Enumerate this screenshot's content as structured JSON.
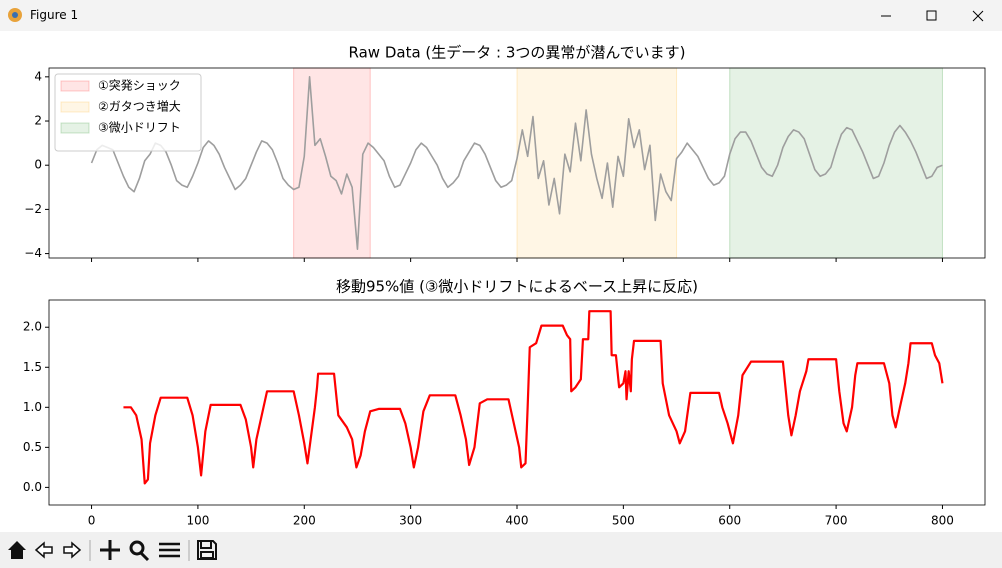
{
  "window": {
    "title": "Figure 1"
  },
  "chart_data": [
    {
      "type": "line",
      "title": "Raw Data (生データ : 3つの異常が潜んでいます)",
      "xlim": [
        -40,
        840
      ],
      "ylim": [
        -4.2,
        4.4
      ],
      "xticks": [
        0,
        100,
        200,
        300,
        400,
        500,
        600,
        700,
        800
      ],
      "show_xticklabels": false,
      "yticks": [
        {
          "value": -4,
          "label": "−4"
        },
        {
          "value": -2,
          "label": "−2"
        },
        0,
        2,
        4
      ],
      "spans": [
        {
          "name": "①突発ショック",
          "color": "red",
          "start": 190,
          "end": 262
        },
        {
          "name": "②ガタつき増大",
          "color": "orange",
          "start": 400,
          "end": 550
        },
        {
          "name": "③微小ドリフト",
          "color": "green",
          "start": 600,
          "end": 800
        }
      ],
      "span_alpha": 0.1,
      "legend": "upper left",
      "series": [
        {
          "color": "#9e9e9e",
          "x": [
            0,
            5,
            10,
            15,
            20,
            25,
            30,
            35,
            40,
            45,
            50,
            55,
            60,
            65,
            70,
            75,
            80,
            85,
            90,
            95,
            100,
            105,
            110,
            115,
            120,
            125,
            130,
            135,
            140,
            145,
            150,
            155,
            160,
            165,
            170,
            175,
            180,
            185,
            190,
            195,
            200,
            205,
            210,
            215,
            220,
            225,
            230,
            235,
            240,
            245,
            250,
            255,
            260,
            265,
            270,
            275,
            280,
            285,
            290,
            295,
            300,
            305,
            310,
            315,
            320,
            325,
            330,
            335,
            340,
            345,
            350,
            355,
            360,
            365,
            370,
            375,
            380,
            385,
            390,
            395,
            400,
            405,
            410,
            415,
            420,
            425,
            430,
            435,
            440,
            445,
            450,
            455,
            460,
            465,
            470,
            475,
            480,
            485,
            490,
            495,
            500,
            505,
            510,
            515,
            520,
            525,
            530,
            535,
            540,
            545,
            550,
            555,
            560,
            565,
            570,
            575,
            580,
            585,
            590,
            595,
            600,
            605,
            610,
            615,
            620,
            625,
            630,
            635,
            640,
            645,
            650,
            655,
            660,
            665,
            670,
            675,
            680,
            685,
            690,
            695,
            700,
            705,
            710,
            715,
            720,
            725,
            730,
            735,
            740,
            745,
            750,
            755,
            760,
            765,
            770,
            775,
            780,
            785,
            790,
            795,
            800
          ],
          "values": [
            0.1,
            0.7,
            0.9,
            0.8,
            0.7,
            0.1,
            -0.5,
            -1.0,
            -1.2,
            -0.6,
            0.2,
            0.5,
            1.0,
            0.9,
            0.6,
            0.0,
            -0.7,
            -0.9,
            -1.0,
            -0.5,
            0.1,
            0.8,
            1.1,
            0.9,
            0.5,
            -0.1,
            -0.6,
            -1.1,
            -0.9,
            -0.6,
            0.0,
            0.6,
            1.1,
            1.0,
            0.7,
            0.1,
            -0.6,
            -0.9,
            -1.1,
            -1.0,
            0.4,
            4.0,
            0.9,
            1.2,
            0.4,
            -0.5,
            -0.7,
            -1.3,
            -0.4,
            -1.0,
            -3.8,
            0.5,
            1.0,
            0.8,
            0.5,
            0.2,
            -0.5,
            -1.0,
            -0.9,
            -0.4,
            0.1,
            0.7,
            1.0,
            0.8,
            0.4,
            0.0,
            -0.6,
            -1.0,
            -0.8,
            -0.5,
            0.2,
            0.6,
            1.0,
            0.9,
            0.5,
            -0.1,
            -0.7,
            -1.0,
            -0.9,
            -0.7,
            0.3,
            1.6,
            0.4,
            2.2,
            -0.6,
            0.2,
            -1.8,
            -0.6,
            -2.2,
            0.5,
            -0.3,
            1.9,
            0.2,
            2.5,
            0.5,
            -0.6,
            -1.5,
            0.1,
            -1.9,
            0.4,
            -0.5,
            2.1,
            0.8,
            1.6,
            -0.2,
            0.9,
            -2.5,
            -0.4,
            -1.2,
            -1.6,
            0.3,
            0.6,
            1.0,
            0.7,
            0.4,
            -0.1,
            -0.6,
            -0.9,
            -0.8,
            -0.5,
            0.5,
            1.2,
            1.5,
            1.5,
            1.1,
            0.5,
            -0.1,
            -0.4,
            -0.5,
            0.0,
            0.8,
            1.3,
            1.6,
            1.5,
            1.2,
            0.5,
            -0.2,
            -0.5,
            -0.4,
            -0.1,
            0.7,
            1.4,
            1.7,
            1.6,
            1.1,
            0.6,
            0.0,
            -0.6,
            -0.5,
            0.1,
            0.9,
            1.5,
            1.8,
            1.5,
            1.1,
            0.6,
            0.0,
            -0.6,
            -0.5,
            -0.1,
            0.0
          ]
        }
      ]
    },
    {
      "type": "line",
      "title": "移動95%値 (③微小ドリフトによるベース上昇に反応)",
      "xlim": [
        -40,
        840
      ],
      "ylim": [
        -0.22,
        2.34
      ],
      "xticks": [
        0,
        100,
        200,
        300,
        400,
        500,
        600,
        700,
        800
      ],
      "yticks": [
        {
          "value": 0,
          "label": "0.0"
        },
        0.5,
        {
          "value": 1,
          "label": "1.0"
        },
        1.5,
        {
          "value": 2,
          "label": "2.0"
        }
      ],
      "series": [
        {
          "color": "red",
          "x": [
            30,
            37,
            42,
            47,
            50,
            53,
            55,
            60,
            65,
            90,
            95,
            100,
            103,
            107,
            112,
            140,
            145,
            150,
            152,
            155,
            160,
            165,
            190,
            195,
            200,
            203,
            206,
            210,
            212,
            213,
            228,
            232,
            240,
            245,
            249,
            253,
            257,
            262,
            270,
            290,
            295,
            300,
            303,
            307,
            312,
            318,
            342,
            347,
            352,
            355,
            360,
            365,
            372,
            392,
            397,
            402,
            404,
            408,
            410,
            412,
            418,
            423,
            443,
            447,
            450,
            451,
            455,
            460,
            462,
            467,
            468,
            488,
            489,
            493,
            496,
            500,
            502,
            503,
            505,
            507,
            508,
            510,
            535,
            537,
            543,
            550,
            553,
            558,
            563,
            590,
            593,
            598,
            603,
            608,
            612,
            620,
            650,
            655,
            658,
            662,
            666,
            672,
            674,
            700,
            703,
            707,
            710,
            715,
            718,
            720,
            745,
            750,
            753,
            756,
            760,
            765,
            768,
            770,
            790,
            793,
            797,
            800
          ],
          "values": [
            1.0,
            1.0,
            0.9,
            0.6,
            0.05,
            0.1,
            0.55,
            0.9,
            1.12,
            1.12,
            0.9,
            0.5,
            0.15,
            0.7,
            1.03,
            1.03,
            0.85,
            0.5,
            0.25,
            0.6,
            0.9,
            1.2,
            1.2,
            0.9,
            0.55,
            0.3,
            0.6,
            1.0,
            1.25,
            1.42,
            1.42,
            0.9,
            0.75,
            0.6,
            0.25,
            0.4,
            0.7,
            0.95,
            0.98,
            0.98,
            0.8,
            0.5,
            0.25,
            0.5,
            0.95,
            1.15,
            1.15,
            0.9,
            0.6,
            0.28,
            0.5,
            1.05,
            1.1,
            1.1,
            0.8,
            0.5,
            0.25,
            0.3,
            1.0,
            1.75,
            1.8,
            2.02,
            2.02,
            1.9,
            1.85,
            1.2,
            1.25,
            1.35,
            1.85,
            1.85,
            2.2,
            2.2,
            1.65,
            1.65,
            1.25,
            1.3,
            1.45,
            1.1,
            1.45,
            1.2,
            1.6,
            1.83,
            1.83,
            1.3,
            0.9,
            0.7,
            0.55,
            0.7,
            1.18,
            1.18,
            1.0,
            0.8,
            0.55,
            0.9,
            1.4,
            1.57,
            1.57,
            0.9,
            0.65,
            0.9,
            1.2,
            1.45,
            1.6,
            1.6,
            1.2,
            0.8,
            0.7,
            1.0,
            1.4,
            1.55,
            1.55,
            1.3,
            0.9,
            0.75,
            1.0,
            1.3,
            1.55,
            1.8,
            1.8,
            1.65,
            1.55,
            1.3
          ]
        }
      ]
    }
  ]
}
